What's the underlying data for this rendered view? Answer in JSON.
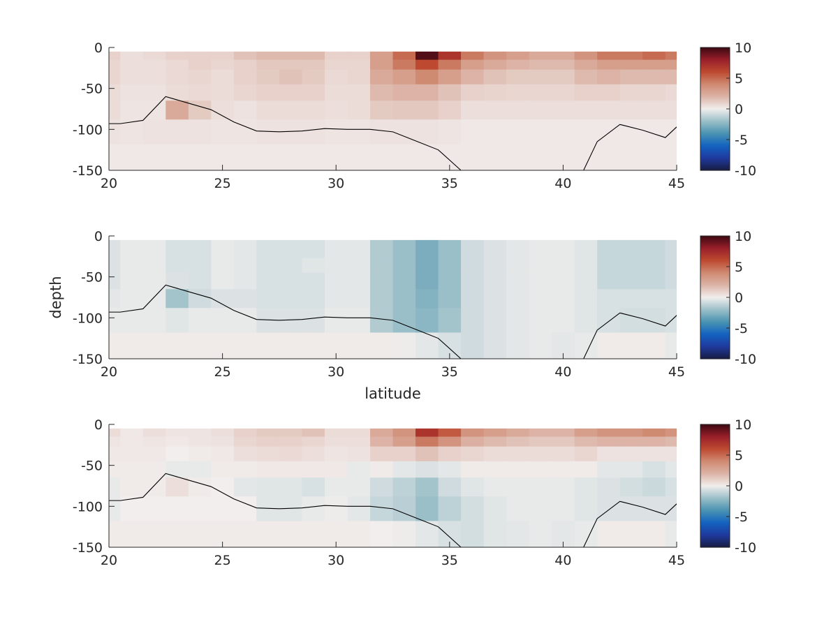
{
  "chart_data": {
    "type": "heatmap",
    "xlabel": "latitude",
    "ylabel": "depth",
    "xlim": [
      20,
      45
    ],
    "ylim": [
      -150,
      0
    ],
    "xticks": [
      20,
      25,
      30,
      35,
      40,
      45
    ],
    "yticks": [
      0,
      -50,
      -100,
      -150
    ],
    "colorbar": {
      "range": [
        -10,
        10
      ],
      "ticks": [
        10,
        5,
        0,
        -5,
        -10
      ]
    },
    "latitudes": [
      20,
      21,
      22,
      23,
      24,
      25,
      26,
      27,
      28,
      29,
      30,
      31,
      32,
      33,
      34,
      35,
      36,
      37,
      38,
      39,
      40,
      41,
      42,
      43,
      44,
      45
    ],
    "depth_edges": [
      -5,
      -15,
      -27,
      -45,
      -65,
      -88,
      -118,
      -150
    ],
    "bathymetry": {
      "lat": [
        20,
        20.5,
        21.5,
        22.5,
        23.5,
        24.5,
        25.5,
        26.5,
        27.5,
        28.5,
        29.5,
        30.5,
        31.5,
        32.5,
        33.5,
        34.5,
        35.5,
        36.5,
        40,
        40.9,
        41.5,
        42.5,
        43.5,
        44.5,
        45
      ],
      "depth": [
        -93,
        -93,
        -89,
        -60,
        -68,
        -76,
        -91,
        -102,
        -103,
        -102,
        -99,
        -100,
        -100,
        -103,
        -114,
        -125,
        -150,
        -170,
        -170,
        -150,
        -115,
        -94,
        -101,
        -110,
        -97
      ]
    },
    "panels": [
      {
        "values": [
          [
            1,
            0.5,
            0.7,
            1,
            1,
            1,
            1.5,
            1.8,
            1.8,
            1.8,
            1,
            1,
            3,
            5,
            9.5,
            7,
            4.5,
            3.5,
            3,
            2.5,
            2.5,
            3.5,
            4.5,
            4.5,
            5,
            4.5
          ],
          [
            0.8,
            0.5,
            0.5,
            0.7,
            1,
            0.8,
            1,
            1.3,
            1.3,
            1.3,
            0.8,
            0.8,
            3,
            4.5,
            6,
            4.5,
            3,
            2.5,
            2,
            1.8,
            1.8,
            2.5,
            3,
            3,
            3,
            3
          ],
          [
            0.8,
            0.5,
            0.5,
            0.7,
            0.8,
            0.6,
            1,
            1.2,
            1.5,
            1.2,
            0.7,
            0.8,
            2.5,
            3,
            4,
            3,
            2,
            1.5,
            1.2,
            1.2,
            1.2,
            1.8,
            2,
            1.8,
            1.8,
            1.8
          ],
          [
            0.6,
            0.4,
            0.4,
            0.6,
            0.7,
            0.6,
            0.8,
            1,
            1,
            1,
            0.6,
            0.6,
            1.8,
            2,
            2,
            1.5,
            1,
            0.9,
            0.8,
            0.8,
            0.8,
            1,
            1,
            0.8,
            0.8,
            0.7
          ],
          [
            0.6,
            0.3,
            0.3,
            2.5,
            1.2,
            0.5,
            0.4,
            0.6,
            0.6,
            0.6,
            0.5,
            0.6,
            1.2,
            1.3,
            1.3,
            1,
            0.5,
            0.5,
            0.5,
            0.5,
            0.5,
            0.5,
            0.5,
            0.5,
            0.5,
            0.5
          ],
          [
            0.4,
            0.3,
            0.4,
            0.4,
            0.4,
            0.3,
            0.3,
            0.4,
            0.4,
            0.4,
            0.3,
            0.3,
            0.4,
            0.4,
            0.4,
            0.3,
            0.2,
            0.2,
            0.2,
            0.2,
            0.2,
            0.2,
            0.2,
            0.2,
            0.2,
            0.2
          ],
          [
            0.2,
            0.2,
            0.2,
            0.2,
            0.2,
            0.2,
            0.2,
            0.2,
            0.2,
            0.2,
            0.2,
            0.2,
            0.2,
            0.2,
            0.2,
            0.2,
            0.2,
            0.2,
            0.2,
            0.2,
            0.2,
            0.2,
            0.2,
            0.2,
            0.2,
            0.2
          ]
        ]
      },
      {
        "values": [
          [
            -0.5,
            -0.2,
            -0.2,
            -0.6,
            -0.6,
            -0.2,
            -0.3,
            -0.6,
            -0.6,
            -0.6,
            -0.3,
            -0.3,
            -1.5,
            -2,
            -2.8,
            -2,
            -0.8,
            -0.5,
            -0.3,
            -0.2,
            -0.2,
            -0.4,
            -1,
            -1,
            -1,
            -0.8
          ],
          [
            -0.5,
            -0.2,
            -0.2,
            -0.6,
            -0.6,
            -0.2,
            -0.3,
            -0.6,
            -0.6,
            -0.6,
            -0.3,
            -0.3,
            -1.5,
            -2,
            -2.8,
            -2,
            -0.8,
            -0.5,
            -0.3,
            -0.2,
            -0.2,
            -0.4,
            -1,
            -1,
            -1,
            -0.8
          ],
          [
            -0.5,
            -0.2,
            -0.2,
            -0.6,
            -0.6,
            -0.2,
            -0.3,
            -0.6,
            -0.6,
            -0.4,
            -0.3,
            -0.3,
            -1.5,
            -2,
            -2.8,
            -2,
            -0.8,
            -0.5,
            -0.3,
            -0.2,
            -0.2,
            -0.4,
            -1,
            -1,
            -1,
            -0.8
          ],
          [
            -0.5,
            -0.2,
            -0.2,
            -0.5,
            -0.6,
            -0.2,
            -0.3,
            -0.6,
            -0.6,
            -0.6,
            -0.3,
            -0.3,
            -1.5,
            -2,
            -2.8,
            -2,
            -0.8,
            -0.5,
            -0.3,
            -0.2,
            -0.2,
            -0.4,
            -1,
            -1,
            -1,
            -0.8
          ],
          [
            -0.3,
            -0.2,
            -0.2,
            -1.8,
            -0.8,
            -0.5,
            -0.5,
            -0.6,
            -0.6,
            -0.6,
            -0.3,
            -0.3,
            -1.5,
            -2,
            -2.6,
            -2,
            -0.8,
            -0.5,
            -0.3,
            -0.2,
            -0.2,
            -0.4,
            -0.6,
            -0.6,
            -0.6,
            -0.6
          ],
          [
            -0.2,
            -0.2,
            -0.2,
            -0.4,
            -0.2,
            -0.2,
            -0.2,
            -0.5,
            -0.5,
            -0.5,
            -0.2,
            -0.2,
            -1.5,
            -2,
            -2.4,
            -1.8,
            -0.8,
            -0.5,
            -0.3,
            -0.2,
            -0.2,
            -0.4,
            -0.6,
            -0.7,
            -0.7,
            -0.6
          ],
          [
            0.1,
            0.1,
            0.1,
            0.1,
            0.1,
            0.1,
            0.1,
            0.1,
            0.1,
            0.1,
            0.1,
            0.1,
            0.1,
            -0.1,
            -0.3,
            -0.6,
            -0.8,
            -0.5,
            -0.3,
            -0.2,
            -0.3,
            -0.2,
            0.1,
            0.1,
            0.1,
            -0.2
          ]
        ]
      },
      {
        "values": [
          [
            0.6,
            0.2,
            0.5,
            0.3,
            0.3,
            0.5,
            1,
            1.2,
            1.2,
            1.5,
            0.6,
            0.6,
            2.5,
            3.5,
            7,
            5.5,
            3.5,
            3,
            2.5,
            2,
            2,
            3,
            3.5,
            3.5,
            4,
            3.5
          ],
          [
            0.3,
            0.2,
            0.3,
            0.2,
            0.3,
            0.4,
            0.8,
            1,
            1,
            0.8,
            0.5,
            0.5,
            2,
            3,
            4.5,
            3.5,
            2.2,
            1.8,
            1.5,
            1.3,
            1.3,
            1.8,
            2,
            2,
            2,
            1.8
          ],
          [
            0.2,
            0.2,
            0.2,
            0,
            0.1,
            0.2,
            0.5,
            0.6,
            0.7,
            0.5,
            0.3,
            0.4,
            1,
            1,
            1.5,
            1,
            0.8,
            0.6,
            0.6,
            0.6,
            0.6,
            0.8,
            0.4,
            0.4,
            0.4,
            0.4
          ],
          [
            0.1,
            0.1,
            0.1,
            -0.2,
            -0.2,
            0.1,
            0.1,
            0.2,
            0.2,
            0.2,
            0.2,
            -0.2,
            0.1,
            -0.3,
            -0.5,
            -0.3,
            0.1,
            0.1,
            0.1,
            0.1,
            0.1,
            0.1,
            -0.3,
            -0.3,
            -0.6,
            -0.3
          ],
          [
            -0.2,
            0.1,
            0.1,
            0.5,
            0.1,
            0,
            -0.3,
            -0.4,
            -0.4,
            -0.6,
            -0.2,
            -0.2,
            -0.8,
            -1.2,
            -1.8,
            -0.8,
            -0.4,
            -0.2,
            -0.2,
            -0.2,
            -0.2,
            -0.4,
            -0.5,
            -0.7,
            -0.9,
            -0.6
          ],
          [
            -0.2,
            0,
            0,
            0,
            0,
            0,
            0,
            -0.4,
            -0.4,
            -0.2,
            -0.1,
            -0.3,
            -1,
            -1.3,
            -2,
            -1.2,
            -0.7,
            -0.4,
            -0.2,
            -0.2,
            -0.2,
            -0.4,
            -0.5,
            -0.5,
            -0.5,
            -0.5
          ],
          [
            0.1,
            0.1,
            0.1,
            0.1,
            0.1,
            0.1,
            0.1,
            0.1,
            0.1,
            0.1,
            0.1,
            0.1,
            0,
            -0.1,
            -0.3,
            -0.6,
            -0.7,
            -0.4,
            -0.3,
            -0.2,
            -0.3,
            -0.2,
            0.1,
            0.1,
            0.1,
            -0.2
          ]
        ]
      }
    ],
    "colors": {
      "colormap": [
        "#181c43",
        "#1f3a9e",
        "#1363c0",
        "#4a93b2",
        "#9bbfc8",
        "#f1eeed",
        "#dcb3a6",
        "#cf8a72",
        "#bd4a30",
        "#991f2a",
        "#3c0911"
      ],
      "line": "#000000",
      "axis": "#262626"
    }
  }
}
